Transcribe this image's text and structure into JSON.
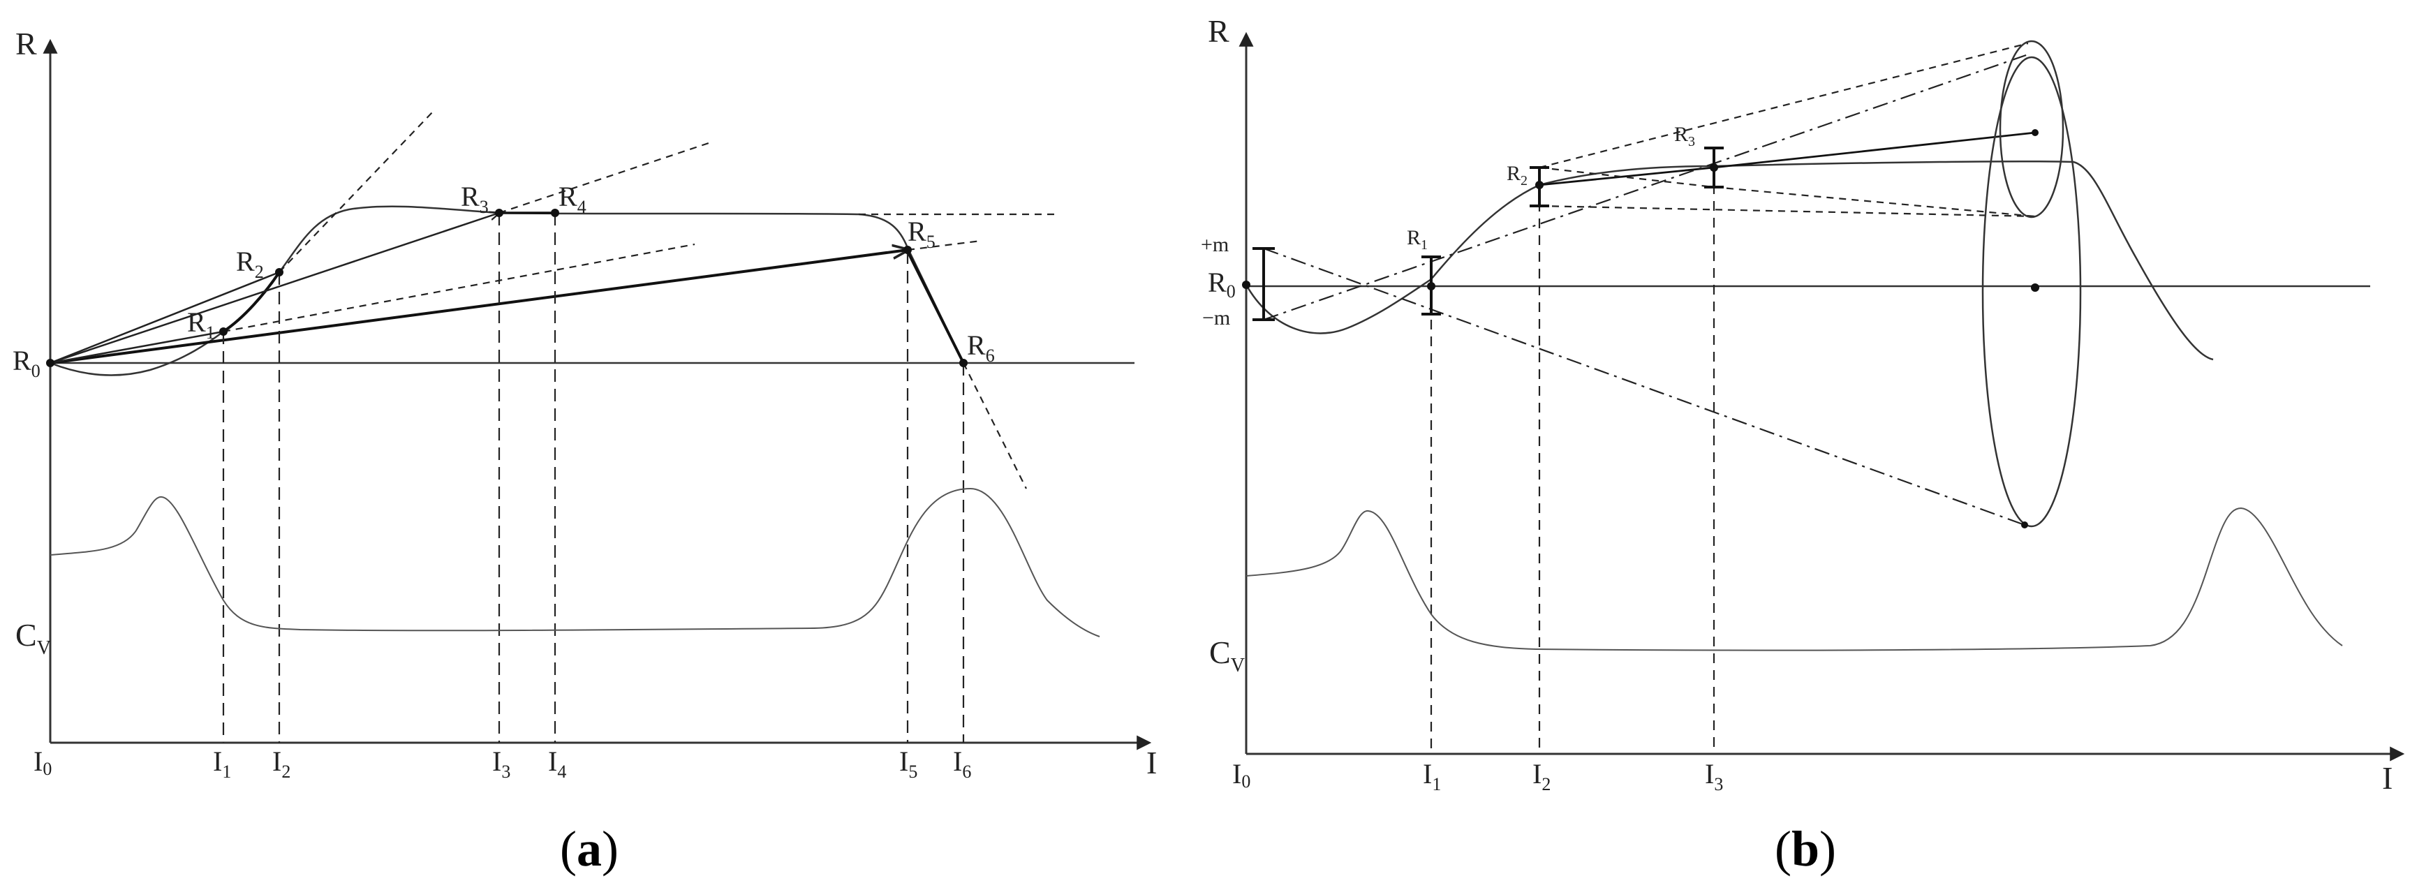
{
  "panel_a": {
    "caption_letter": "a",
    "axis_y": "R",
    "axis_x": "I",
    "cv_label": "C",
    "cv_sub": "V",
    "points": [
      {
        "main": "R",
        "sub": "0"
      },
      {
        "main": "R",
        "sub": "1"
      },
      {
        "main": "R",
        "sub": "2"
      },
      {
        "main": "R",
        "sub": "3"
      },
      {
        "main": "R",
        "sub": "4"
      },
      {
        "main": "R",
        "sub": "5"
      },
      {
        "main": "R",
        "sub": "6"
      }
    ],
    "ticks": [
      {
        "main": "I",
        "sub": "0"
      },
      {
        "main": "I",
        "sub": "1"
      },
      {
        "main": "I",
        "sub": "2"
      },
      {
        "main": "I",
        "sub": "3"
      },
      {
        "main": "I",
        "sub": "4"
      },
      {
        "main": "I",
        "sub": "5"
      },
      {
        "main": "I",
        "sub": "6"
      }
    ]
  },
  "panel_b": {
    "caption_letter": "b",
    "axis_y": "R",
    "axis_x": "I",
    "cv_label": "C",
    "cv_sub": "V",
    "plus_m": "+m",
    "minus_m": "−m",
    "points": [
      {
        "main": "R",
        "sub": "0"
      },
      {
        "main": "R",
        "sub": "1"
      },
      {
        "main": "R",
        "sub": "2"
      },
      {
        "main": "R",
        "sub": "3"
      }
    ],
    "ticks": [
      {
        "main": "I",
        "sub": "0"
      },
      {
        "main": "I",
        "sub": "1"
      },
      {
        "main": "I",
        "sub": "2"
      },
      {
        "main": "I",
        "sub": "3"
      }
    ]
  }
}
